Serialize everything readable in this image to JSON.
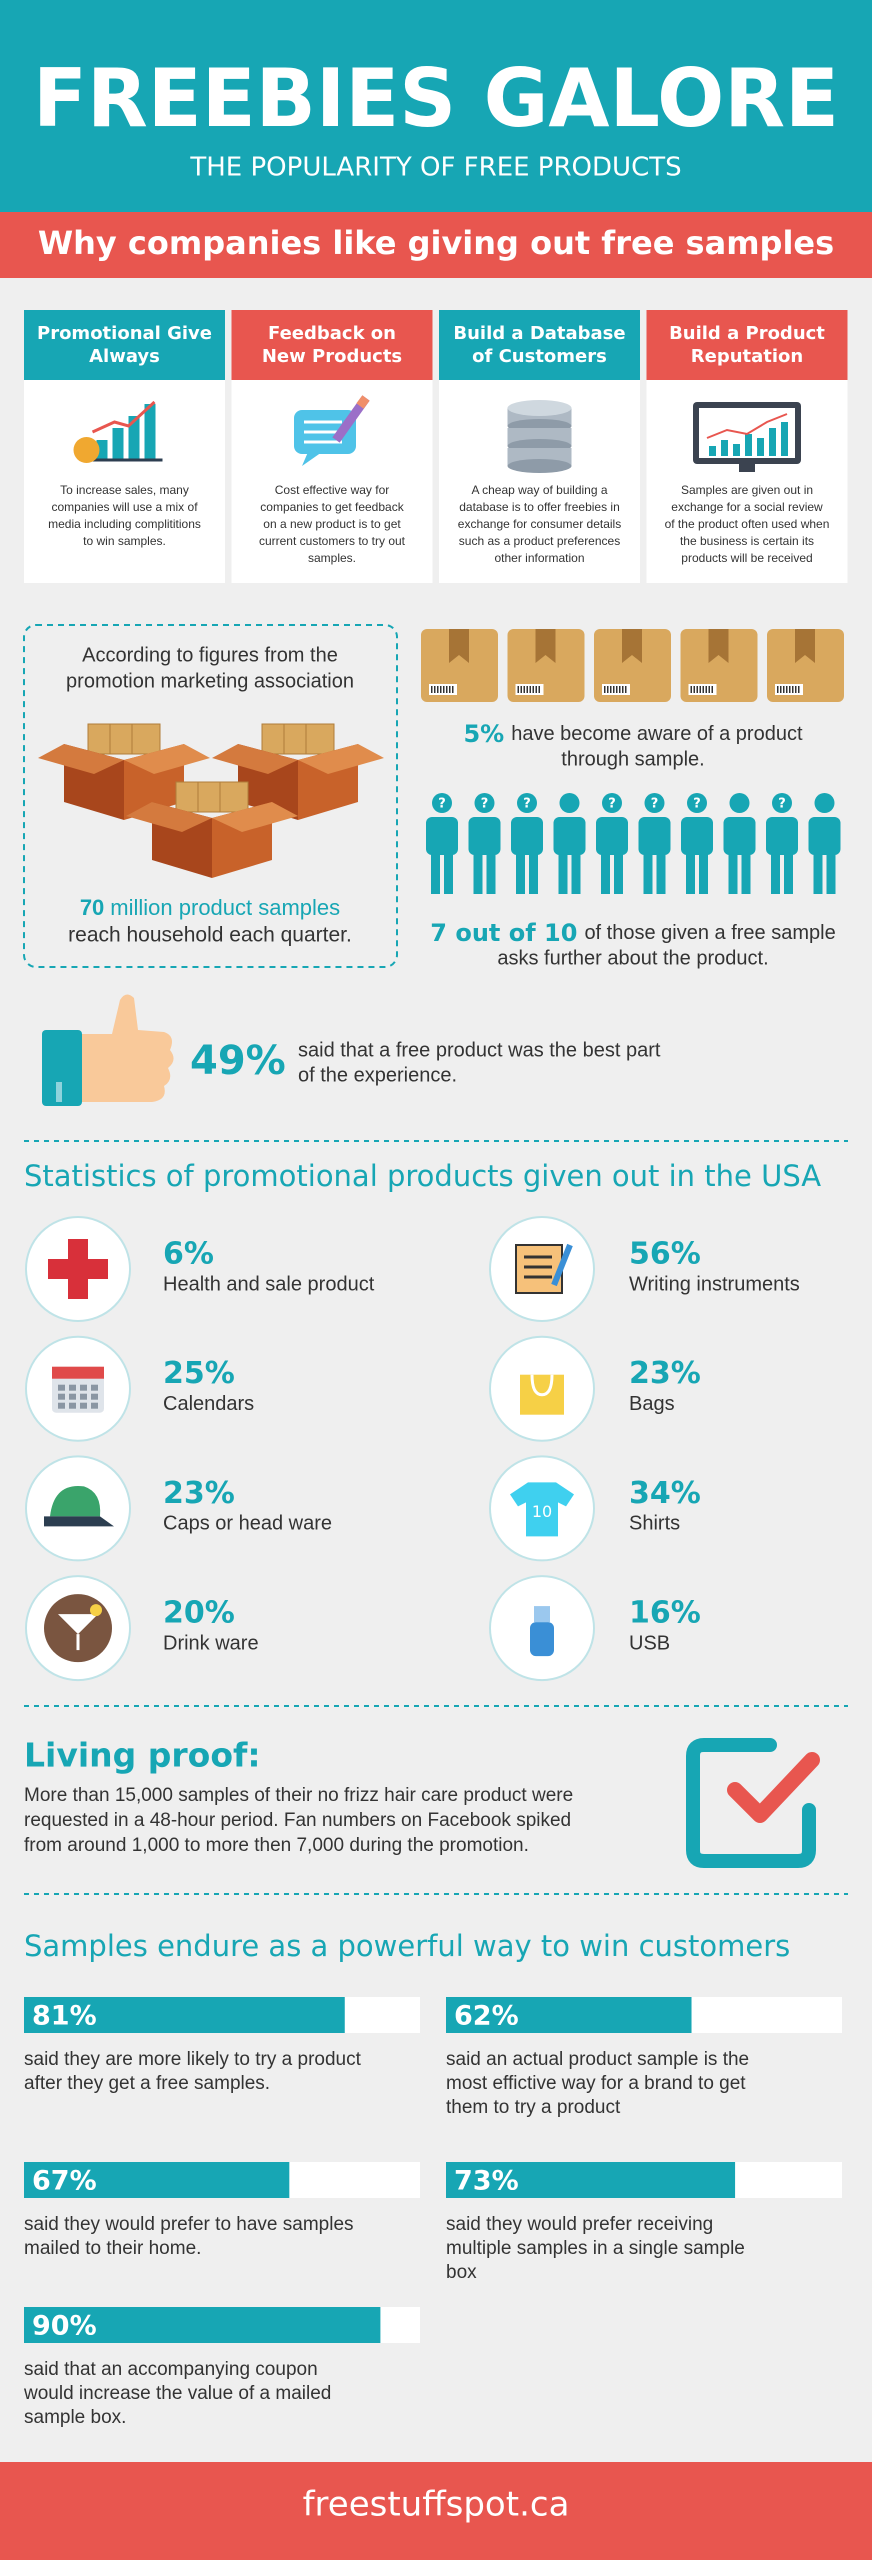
{
  "header": {
    "title": "FREEBIES GALORE",
    "subtitle": "THE POPULARITY OF FREE PRODUCTS"
  },
  "banner": "Why companies like giving out free samples",
  "reasons": [
    {
      "title": [
        "Promotional Give",
        "Always"
      ],
      "text": [
        "To increase sales, many",
        "companies will use a mix of",
        "media including complititions",
        "to win samples."
      ]
    },
    {
      "title": [
        "Feedback on",
        "New Products"
      ],
      "text": [
        "Cost effective way for",
        "companies to get feedback",
        "on a new product is to get",
        "current customers to try out",
        "samples."
      ]
    },
    {
      "title": [
        "Build a Database",
        "of Customers"
      ],
      "text": [
        "A cheap way of building a",
        "database is to offer freebies in",
        "exchange for consumer details",
        "such as a product preferences",
        "other information"
      ]
    },
    {
      "title": [
        "Build a Product",
        "Reputation"
      ],
      "text": [
        "Samples are given out in",
        "exchange for a social review",
        "of the product often used when",
        "the business is certain its",
        "products will be received"
      ]
    }
  ],
  "figures": {
    "intro": [
      "According to figures from the",
      "promotion marketing association"
    ],
    "highlight": "70",
    "highlight_rest": "million product samples",
    "caption": "reach household each quarter."
  },
  "aware": {
    "value": "5%",
    "text": [
      "have become aware of a product",
      "through sample."
    ]
  },
  "asks": {
    "value": "7 out of 10",
    "text": [
      "of those given a free sample",
      "asks further about the product."
    ],
    "question_mark": "?"
  },
  "best_part": {
    "value": "49%",
    "text": [
      "said that a free product was the best part",
      "of the experience."
    ]
  },
  "statistics": {
    "heading": "Statistics of promotional products given out in the USA",
    "items": [
      {
        "value": "6%",
        "label": "Health and sale product"
      },
      {
        "value": "56%",
        "label": "Writing instruments"
      },
      {
        "value": "25%",
        "label": "Calendars"
      },
      {
        "value": "23%",
        "label": "Bags"
      },
      {
        "value": "23%",
        "label": "Caps or head ware"
      },
      {
        "value": "34%",
        "label": "Shirts",
        "icon_text": "10"
      },
      {
        "value": "20%",
        "label": "Drink ware"
      },
      {
        "value": "16%",
        "label": "USB"
      }
    ]
  },
  "living_proof": {
    "heading": "Living proof:",
    "text": [
      "More than 15,000 samples of their no frizz hair care product were",
      "requested in a 48-hour period. Fan numbers on Facebook spiked",
      "from around 1,000 to more then 7,000 during the promotion."
    ]
  },
  "samples": {
    "heading": "Samples endure as a powerful way to win customers",
    "items": [
      {
        "value": 81,
        "label": "81%",
        "text": [
          "said they are more likely to try a product",
          "after they get a free samples."
        ]
      },
      {
        "value": 62,
        "label": "62%",
        "text": [
          "said an actual product sample is the",
          "most effictive way for a brand to get",
          "them to try a product"
        ]
      },
      {
        "value": 67,
        "label": "67%",
        "text": [
          "said they would prefer to have samples",
          "mailed to their home."
        ]
      },
      {
        "value": 73,
        "label": "73%",
        "text": [
          "said they would prefer receiving",
          "multiple samples in a single sample",
          "box"
        ]
      },
      {
        "value": 90,
        "label": "90%",
        "text": [
          "said that an accompanying coupon",
          "would increase the value of a mailed",
          "sample box."
        ]
      }
    ]
  },
  "footer": "freestuffspot.ca"
}
